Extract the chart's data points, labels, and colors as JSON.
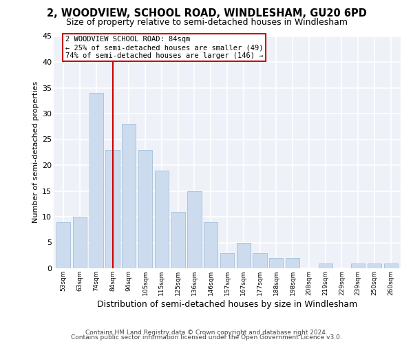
{
  "title": "2, WOODVIEW, SCHOOL ROAD, WINDLESHAM, GU20 6PD",
  "subtitle": "Size of property relative to semi-detached houses in Windlesham",
  "xlabel": "Distribution of semi-detached houses by size in Windlesham",
  "ylabel": "Number of semi-detached properties",
  "bar_labels": [
    "53sqm",
    "63sqm",
    "74sqm",
    "84sqm",
    "94sqm",
    "105sqm",
    "115sqm",
    "125sqm",
    "136sqm",
    "146sqm",
    "157sqm",
    "167sqm",
    "177sqm",
    "188sqm",
    "198sqm",
    "208sqm",
    "219sqm",
    "229sqm",
    "239sqm",
    "250sqm",
    "260sqm"
  ],
  "bar_values": [
    9,
    10,
    34,
    23,
    28,
    23,
    19,
    11,
    15,
    9,
    3,
    5,
    3,
    2,
    2,
    0,
    1,
    0,
    1,
    1,
    1
  ],
  "bar_color": "#ccdcee",
  "bar_edge_color": "#aac4de",
  "ylim": [
    0,
    45
  ],
  "yticks": [
    0,
    5,
    10,
    15,
    20,
    25,
    30,
    35,
    40,
    45
  ],
  "vline_x_idx": 3,
  "vline_color": "#cc0000",
  "annotation_title": "2 WOODVIEW SCHOOL ROAD: 84sqm",
  "annotation_line1": "← 25% of semi-detached houses are smaller (49)",
  "annotation_line2": "74% of semi-detached houses are larger (146) →",
  "annotation_box_color": "#cc0000",
  "footer1": "Contains HM Land Registry data © Crown copyright and database right 2024.",
  "footer2": "Contains public sector information licensed under the Open Government Licence v3.0.",
  "bg_color": "#ffffff",
  "plot_bg_color": "#eef2f8",
  "title_fontsize": 10.5,
  "subtitle_fontsize": 9,
  "ylabel_fontsize": 8,
  "xlabel_fontsize": 9
}
